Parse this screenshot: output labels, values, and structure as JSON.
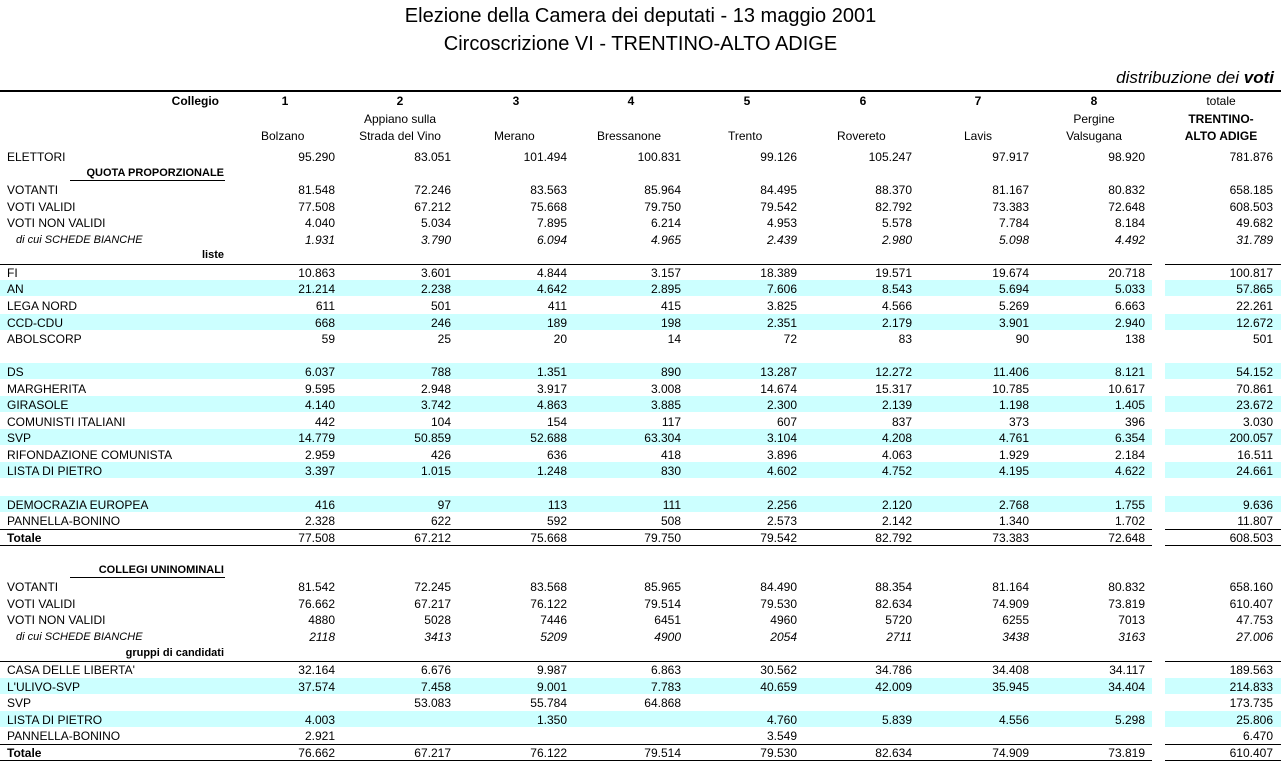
{
  "header": {
    "title": "Elezione della Camera dei deputati  -  13 maggio 2001",
    "subtitle": "Circoscrizione VI - TRENTINO-ALTO ADIGE",
    "note": "distribuzione dei",
    "note_emphasis": "voti"
  },
  "table": {
    "collegio_label": "Collegio",
    "columns": [
      {
        "number": "1",
        "name": "Bolzano"
      },
      {
        "number": "2",
        "name": "Appiano sulla Strada del Vino"
      },
      {
        "number": "3",
        "name": "Merano"
      },
      {
        "number": "4",
        "name": "Bressanone"
      },
      {
        "number": "5",
        "name": "Trento"
      },
      {
        "number": "6",
        "name": "Rovereto"
      },
      {
        "number": "7",
        "name": "Lavis"
      },
      {
        "number": "8",
        "name": "Pergine Valsugana"
      },
      {
        "number": "totale",
        "name": "TRENTINO-ALTO ADIGE"
      }
    ],
    "rows": [
      {
        "label": "ELETTORI",
        "kind": "data",
        "values": [
          "95.290",
          "83.051",
          "101.494",
          "100.831",
          "99.126",
          "105.247",
          "97.917",
          "98.920",
          "781.876"
        ]
      },
      {
        "label": "QUOTA PROPORZIONALE",
        "kind": "heading",
        "underline": true
      },
      {
        "label": "VOTANTI",
        "kind": "data",
        "values": [
          "81.548",
          "72.246",
          "83.563",
          "85.964",
          "84.495",
          "88.370",
          "81.167",
          "80.832",
          "658.185"
        ]
      },
      {
        "label": "VOTI VALIDI",
        "kind": "data",
        "values": [
          "77.508",
          "67.212",
          "75.668",
          "79.750",
          "79.542",
          "82.792",
          "73.383",
          "72.648",
          "608.503"
        ]
      },
      {
        "label": "VOTI NON VALIDI",
        "kind": "data",
        "values": [
          "4.040",
          "5.034",
          "7.895",
          "6.214",
          "4.953",
          "5.578",
          "7.784",
          "8.184",
          "49.682"
        ]
      },
      {
        "label": "di cui  SCHEDE BIANCHE",
        "kind": "sub",
        "values": [
          "1.931",
          "3.790",
          "6.094",
          "4.965",
          "2.439",
          "2.980",
          "5.098",
          "4.492",
          "31.789"
        ]
      },
      {
        "label": "liste",
        "kind": "heading"
      },
      {
        "label": "FI",
        "kind": "data",
        "rule_above": true,
        "values": [
          "10.863",
          "3.601",
          "4.844",
          "3.157",
          "18.389",
          "19.571",
          "19.674",
          "20.718",
          "100.817"
        ]
      },
      {
        "label": "AN",
        "kind": "data",
        "shaded": true,
        "values": [
          "21.214",
          "2.238",
          "4.642",
          "2.895",
          "7.606",
          "8.543",
          "5.694",
          "5.033",
          "57.865"
        ]
      },
      {
        "label": "LEGA NORD",
        "kind": "data",
        "values": [
          "611",
          "501",
          "411",
          "415",
          "3.825",
          "4.566",
          "5.269",
          "6.663",
          "22.261"
        ]
      },
      {
        "label": "CCD-CDU",
        "kind": "data",
        "shaded": true,
        "values": [
          "668",
          "246",
          "189",
          "198",
          "2.351",
          "2.179",
          "3.901",
          "2.940",
          "12.672"
        ]
      },
      {
        "label": "ABOLSCORP",
        "kind": "data",
        "values": [
          "59",
          "25",
          "20",
          "14",
          "72",
          "83",
          "90",
          "138",
          "501"
        ]
      },
      {
        "label": "DS",
        "kind": "data",
        "shaded": true,
        "gap_before": true,
        "values": [
          "6.037",
          "788",
          "1.351",
          "890",
          "13.287",
          "12.272",
          "11.406",
          "8.121",
          "54.152"
        ]
      },
      {
        "label": "MARGHERITA",
        "kind": "data",
        "values": [
          "9.595",
          "2.948",
          "3.917",
          "3.008",
          "14.674",
          "15.317",
          "10.785",
          "10.617",
          "70.861"
        ]
      },
      {
        "label": "GIRASOLE",
        "kind": "data",
        "shaded": true,
        "values": [
          "4.140",
          "3.742",
          "4.863",
          "3.885",
          "2.300",
          "2.139",
          "1.198",
          "1.405",
          "23.672"
        ]
      },
      {
        "label": "COMUNISTI ITALIANI",
        "kind": "data",
        "values": [
          "442",
          "104",
          "154",
          "117",
          "607",
          "837",
          "373",
          "396",
          "3.030"
        ]
      },
      {
        "label": "SVP",
        "kind": "data",
        "shaded": true,
        "values": [
          "14.779",
          "50.859",
          "52.688",
          "63.304",
          "3.104",
          "4.208",
          "4.761",
          "6.354",
          "200.057"
        ]
      },
      {
        "label": "RIFONDAZIONE COMUNISTA",
        "kind": "data",
        "values": [
          "2.959",
          "426",
          "636",
          "418",
          "3.896",
          "4.063",
          "1.929",
          "2.184",
          "16.511"
        ]
      },
      {
        "label": "LISTA DI PIETRO",
        "kind": "data",
        "shaded": true,
        "values": [
          "3.397",
          "1.015",
          "1.248",
          "830",
          "4.602",
          "4.752",
          "4.195",
          "4.622",
          "24.661"
        ]
      },
      {
        "label": "DEMOCRAZIA EUROPEA",
        "kind": "data",
        "shaded": true,
        "gap_before": true,
        "values": [
          "416",
          "97",
          "113",
          "111",
          "2.256",
          "2.120",
          "2.768",
          "1.755",
          "9.636"
        ]
      },
      {
        "label": "PANNELLA-BONINO",
        "kind": "data",
        "values": [
          "2.328",
          "622",
          "592",
          "508",
          "2.573",
          "2.142",
          "1.340",
          "1.702",
          "11.807"
        ]
      },
      {
        "label": "Totale",
        "kind": "total",
        "values": [
          "77.508",
          "67.212",
          "75.668",
          "79.750",
          "79.542",
          "82.792",
          "73.383",
          "72.648",
          "608.503"
        ]
      },
      {
        "label": "COLLEGI UNINOMINALI",
        "kind": "heading",
        "underline": true,
        "gap_before": true
      },
      {
        "label": "VOTANTI",
        "kind": "data",
        "values": [
          "81.542",
          "72.245",
          "83.568",
          "85.965",
          "84.490",
          "88.354",
          "81.164",
          "80.832",
          "658.160"
        ]
      },
      {
        "label": "VOTI VALIDI",
        "kind": "data",
        "values": [
          "76.662",
          "67.217",
          "76.122",
          "79.514",
          "79.530",
          "82.634",
          "74.909",
          "73.819",
          "610.407"
        ]
      },
      {
        "label": "VOTI NON VALIDI",
        "kind": "data",
        "values": [
          "4880",
          "5028",
          "7446",
          "6451",
          "4960",
          "5720",
          "6255",
          "7013",
          "47.753"
        ]
      },
      {
        "label": "di cui  SCHEDE BIANCHE",
        "kind": "sub",
        "values": [
          "2118",
          "3413",
          "5209",
          "4900",
          "2054",
          "2711",
          "3438",
          "3163",
          "27.006"
        ]
      },
      {
        "label": "gruppi di candidati",
        "kind": "heading"
      },
      {
        "label": "CASA DELLE LIBERTA'",
        "kind": "data",
        "rule_above": true,
        "values": [
          "32.164",
          "6.676",
          "9.987",
          "6.863",
          "30.562",
          "34.786",
          "34.408",
          "34.117",
          "189.563"
        ]
      },
      {
        "label": "L'ULIVO-SVP",
        "kind": "data",
        "shaded": true,
        "values": [
          "37.574",
          "7.458",
          "9.001",
          "7.783",
          "40.659",
          "42.009",
          "35.945",
          "34.404",
          "214.833"
        ]
      },
      {
        "label": "SVP",
        "kind": "data",
        "values": [
          null,
          "53.083",
          "55.784",
          "64.868",
          null,
          null,
          null,
          null,
          "173.735"
        ]
      },
      {
        "label": "LISTA DI PIETRO",
        "kind": "data",
        "shaded": true,
        "values": [
          "4.003",
          null,
          "1.350",
          null,
          "4.760",
          "5.839",
          "4.556",
          "5.298",
          "25.806"
        ]
      },
      {
        "label": "PANNELLA-BONINO",
        "kind": "data",
        "values": [
          "2.921",
          null,
          null,
          null,
          "3.549",
          null,
          null,
          null,
          "6.470"
        ]
      },
      {
        "label": "Totale",
        "kind": "total",
        "values": [
          "76.662",
          "67.217",
          "76.122",
          "79.514",
          "79.530",
          "82.634",
          "74.909",
          "73.819",
          "610.407"
        ]
      }
    ]
  }
}
